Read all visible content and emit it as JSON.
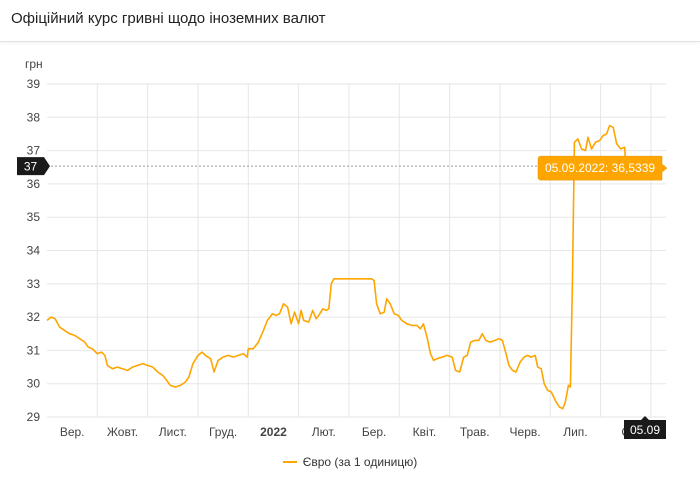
{
  "header": {
    "title": "Офіційний курс гривні щодо іноземних валют"
  },
  "colors": {
    "series": "#ffa500",
    "tooltip_bg": "#ffa500",
    "marker_bg": "#1a1a1a",
    "grid": "#e6e6e6"
  },
  "crosshair": {
    "y_label": "37",
    "x_label": "05.09",
    "value": 36.5339
  },
  "tooltip": {
    "text": "05.09.2022: 36,5339"
  },
  "legend": {
    "label": "Євро (за 1 одиницю)"
  },
  "chart_data": {
    "type": "line",
    "title": "",
    "xlabel": "",
    "ylabel": "грн",
    "ylim": [
      29,
      39
    ],
    "xlim": [
      0,
      12.3
    ],
    "grid": true,
    "legend_position": "bottom",
    "y_ticks": [
      29,
      30,
      31,
      32,
      33,
      34,
      35,
      36,
      37,
      38,
      39
    ],
    "x_ticks": [
      {
        "pos": 0.5,
        "label": "Вер.",
        "bold": false
      },
      {
        "pos": 1.5,
        "label": "Жовт.",
        "bold": false
      },
      {
        "pos": 2.5,
        "label": "Лист.",
        "bold": false
      },
      {
        "pos": 3.5,
        "label": "Груд.",
        "bold": false
      },
      {
        "pos": 4.5,
        "label": "2022",
        "bold": true
      },
      {
        "pos": 5.5,
        "label": "Лют.",
        "bold": false
      },
      {
        "pos": 6.5,
        "label": "Бер.",
        "bold": false
      },
      {
        "pos": 7.5,
        "label": "Квіт.",
        "bold": false
      },
      {
        "pos": 8.5,
        "label": "Трав.",
        "bold": false
      },
      {
        "pos": 9.5,
        "label": "Черв.",
        "bold": false
      },
      {
        "pos": 10.5,
        "label": "Лип.",
        "bold": false
      },
      {
        "pos": 11.5,
        "label": "С",
        "bold": false
      }
    ],
    "x_gridlines": [
      1,
      2,
      3,
      4,
      5,
      6,
      7,
      8,
      9,
      10,
      11,
      12
    ],
    "series": [
      {
        "name": "Євро (за 1 одиницю)",
        "points": [
          [
            0.0,
            31.9
          ],
          [
            0.08,
            32.0
          ],
          [
            0.16,
            31.95
          ],
          [
            0.25,
            31.7
          ],
          [
            0.35,
            31.6
          ],
          [
            0.45,
            31.5
          ],
          [
            0.55,
            31.45
          ],
          [
            0.65,
            31.35
          ],
          [
            0.75,
            31.25
          ],
          [
            0.82,
            31.1
          ],
          [
            0.9,
            31.05
          ],
          [
            1.0,
            30.9
          ],
          [
            1.08,
            30.95
          ],
          [
            1.15,
            30.85
          ],
          [
            1.2,
            30.55
          ],
          [
            1.3,
            30.45
          ],
          [
            1.4,
            30.5
          ],
          [
            1.5,
            30.45
          ],
          [
            1.6,
            30.4
          ],
          [
            1.7,
            30.5
          ],
          [
            1.8,
            30.55
          ],
          [
            1.9,
            30.6
          ],
          [
            2.0,
            30.55
          ],
          [
            2.1,
            30.5
          ],
          [
            2.2,
            30.35
          ],
          [
            2.3,
            30.25
          ],
          [
            2.38,
            30.1
          ],
          [
            2.45,
            29.95
          ],
          [
            2.55,
            29.9
          ],
          [
            2.65,
            29.95
          ],
          [
            2.75,
            30.05
          ],
          [
            2.82,
            30.2
          ],
          [
            2.9,
            30.6
          ],
          [
            3.0,
            30.85
          ],
          [
            3.08,
            30.95
          ],
          [
            3.15,
            30.85
          ],
          [
            3.25,
            30.75
          ],
          [
            3.32,
            30.35
          ],
          [
            3.4,
            30.7
          ],
          [
            3.5,
            30.8
          ],
          [
            3.6,
            30.85
          ],
          [
            3.7,
            30.8
          ],
          [
            3.8,
            30.85
          ],
          [
            3.9,
            30.9
          ],
          [
            3.98,
            30.8
          ],
          [
            4.0,
            31.05
          ],
          [
            4.1,
            31.05
          ],
          [
            4.2,
            31.25
          ],
          [
            4.3,
            31.6
          ],
          [
            4.38,
            31.9
          ],
          [
            4.48,
            32.1
          ],
          [
            4.55,
            32.05
          ],
          [
            4.62,
            32.1
          ],
          [
            4.7,
            32.4
          ],
          [
            4.78,
            32.3
          ],
          [
            4.85,
            31.8
          ],
          [
            4.92,
            32.15
          ],
          [
            5.0,
            31.8
          ],
          [
            5.05,
            32.2
          ],
          [
            5.1,
            31.9
          ],
          [
            5.2,
            31.85
          ],
          [
            5.28,
            32.2
          ],
          [
            5.35,
            31.95
          ],
          [
            5.42,
            32.1
          ],
          [
            5.48,
            32.25
          ],
          [
            5.55,
            32.2
          ],
          [
            5.6,
            32.25
          ],
          [
            5.65,
            33.0
          ],
          [
            5.7,
            33.15
          ],
          [
            5.85,
            33.15
          ],
          [
            6.0,
            33.15
          ],
          [
            6.2,
            33.15
          ],
          [
            6.45,
            33.15
          ],
          [
            6.5,
            33.1
          ],
          [
            6.55,
            32.4
          ],
          [
            6.62,
            32.1
          ],
          [
            6.7,
            32.15
          ],
          [
            6.75,
            32.55
          ],
          [
            6.82,
            32.4
          ],
          [
            6.9,
            32.1
          ],
          [
            6.98,
            32.05
          ],
          [
            7.05,
            31.9
          ],
          [
            7.15,
            31.8
          ],
          [
            7.25,
            31.75
          ],
          [
            7.35,
            31.75
          ],
          [
            7.42,
            31.65
          ],
          [
            7.48,
            31.8
          ],
          [
            7.55,
            31.4
          ],
          [
            7.62,
            30.9
          ],
          [
            7.68,
            30.7
          ],
          [
            7.75,
            30.75
          ],
          [
            7.85,
            30.8
          ],
          [
            7.95,
            30.85
          ],
          [
            8.05,
            30.8
          ],
          [
            8.12,
            30.4
          ],
          [
            8.2,
            30.35
          ],
          [
            8.28,
            30.8
          ],
          [
            8.35,
            30.85
          ],
          [
            8.42,
            31.25
          ],
          [
            8.5,
            31.3
          ],
          [
            8.58,
            31.3
          ],
          [
            8.65,
            31.5
          ],
          [
            8.72,
            31.3
          ],
          [
            8.8,
            31.25
          ],
          [
            8.9,
            31.3
          ],
          [
            8.98,
            31.35
          ],
          [
            9.05,
            31.3
          ],
          [
            9.12,
            30.9
          ],
          [
            9.18,
            30.55
          ],
          [
            9.25,
            30.4
          ],
          [
            9.32,
            30.35
          ],
          [
            9.4,
            30.65
          ],
          [
            9.48,
            30.8
          ],
          [
            9.55,
            30.85
          ],
          [
            9.62,
            30.8
          ],
          [
            9.7,
            30.85
          ],
          [
            9.75,
            30.5
          ],
          [
            9.82,
            30.45
          ],
          [
            9.88,
            30.0
          ],
          [
            9.95,
            29.8
          ],
          [
            10.02,
            29.75
          ],
          [
            10.1,
            29.5
          ],
          [
            10.18,
            29.3
          ],
          [
            10.25,
            29.25
          ],
          [
            10.3,
            29.45
          ],
          [
            10.33,
            29.7
          ],
          [
            10.36,
            29.95
          ],
          [
            10.4,
            29.9
          ],
          [
            10.44,
            33.0
          ],
          [
            10.48,
            37.25
          ],
          [
            10.55,
            37.35
          ],
          [
            10.62,
            37.05
          ],
          [
            10.7,
            37.0
          ],
          [
            10.75,
            37.4
          ],
          [
            10.82,
            37.05
          ],
          [
            10.9,
            37.25
          ],
          [
            10.98,
            37.3
          ],
          [
            11.05,
            37.45
          ],
          [
            11.12,
            37.5
          ],
          [
            11.18,
            37.75
          ],
          [
            11.25,
            37.7
          ],
          [
            11.32,
            37.2
          ],
          [
            11.4,
            37.05
          ],
          [
            11.48,
            37.1
          ],
          [
            11.5,
            36.53
          ]
        ]
      }
    ]
  }
}
